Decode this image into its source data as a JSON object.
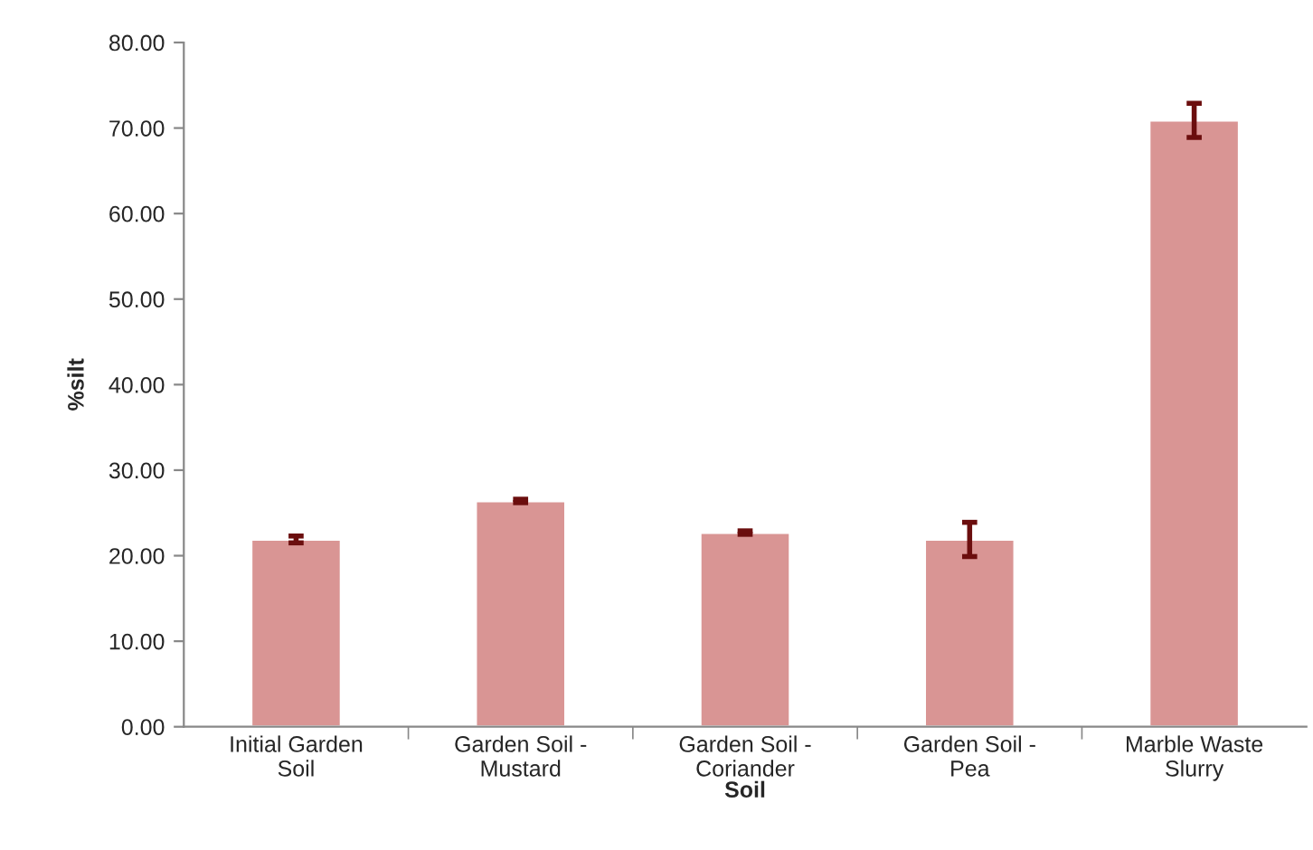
{
  "chart_data": {
    "type": "bar",
    "xlabel": "Soil",
    "ylabel": "%silt",
    "categories": [
      "Initial Garden Soil",
      "Garden Soil - Mustard",
      "Garden Soil - Coriander",
      "Garden Soil - Pea",
      "Marble Waste Slurry"
    ],
    "values": [
      21.9,
      26.4,
      22.7,
      21.9,
      70.9
    ],
    "errors": [
      0.4,
      0.2,
      0.2,
      2.0,
      2.0
    ],
    "color": "#d99594",
    "ylim": [
      0,
      80
    ],
    "yticks": [
      {
        "value": 0,
        "label": "0.00"
      },
      {
        "value": 10,
        "label": "10.00"
      },
      {
        "value": 20,
        "label": "20.00"
      },
      {
        "value": 30,
        "label": "30.00"
      },
      {
        "value": 40,
        "label": "40.00"
      },
      {
        "value": 50,
        "label": "50.00"
      },
      {
        "value": 60,
        "label": "60.00"
      },
      {
        "value": 70,
        "label": "70.00"
      },
      {
        "value": 80,
        "label": "80.00"
      }
    ],
    "grid": false,
    "legend": false
  }
}
